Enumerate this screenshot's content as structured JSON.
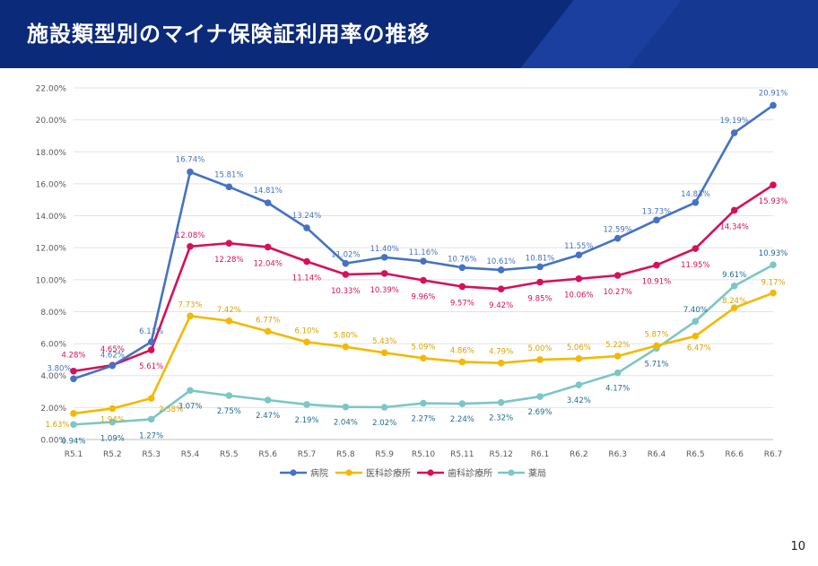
{
  "title": "施設類型別のマイナ保険証利用率の推移",
  "page_number": "10",
  "colors": {
    "header": "#0c2a7a",
    "accent": "#1f4fc4"
  },
  "chart_data": {
    "type": "line",
    "categories": [
      "R5.1",
      "R5.2",
      "R5.3",
      "R5.4",
      "R5.5",
      "R5.6",
      "R5.7",
      "R5.8",
      "R5.9",
      "R5.10",
      "R5.11",
      "R5.12",
      "R6.1",
      "R6.2",
      "R6.3",
      "R6.4",
      "R6.5",
      "R6.6",
      "R6.7"
    ],
    "ylim": [
      0,
      22
    ],
    "yticks": [
      "0.00%",
      "2.00%",
      "4.00%",
      "6.00%",
      "8.00%",
      "10.00%",
      "12.00%",
      "14.00%",
      "16.00%",
      "18.00%",
      "20.00%",
      "22.00%"
    ],
    "grid": true,
    "legend_position": "bottom",
    "series": [
      {
        "name": "病院",
        "color": "#4472c4",
        "values": [
          3.8,
          4.62,
          6.11,
          16.74,
          15.81,
          14.81,
          13.24,
          11.02,
          11.4,
          11.16,
          10.76,
          10.61,
          10.81,
          11.55,
          12.59,
          13.73,
          14.83,
          19.19,
          20.91
        ],
        "labels": [
          "3.80%",
          "4.62%",
          "6.11%",
          "16.74%",
          "15.81%",
          "14.81%",
          "13.24%",
          "11.02%",
          "11.40%",
          "11.16%",
          "10.76%",
          "10.61%",
          "10.81%",
          "11.55%",
          "12.59%",
          "13.73%",
          "14.83%",
          "19.19%",
          "20.91%"
        ]
      },
      {
        "name": "医科診療所",
        "color": "#f5b800",
        "values": [
          1.63,
          1.94,
          2.58,
          7.73,
          7.42,
          6.77,
          6.1,
          5.8,
          5.43,
          5.09,
          4.86,
          4.79,
          5.0,
          5.06,
          5.22,
          5.87,
          6.47,
          8.24,
          9.17
        ],
        "labels": [
          "1.63%",
          "1.94%",
          "2.58%",
          "7.73%",
          "7.42%",
          "6.77%",
          "6.10%",
          "5.80%",
          "5.43%",
          "5.09%",
          "4.86%",
          "4.79%",
          "5.00%",
          "5.06%",
          "5.22%",
          "5.87%",
          "6.47%",
          "8.24%",
          "9.17%"
        ]
      },
      {
        "name": "歯科診療所",
        "color": "#d6105a",
        "values": [
          4.28,
          4.65,
          5.61,
          12.08,
          12.28,
          12.04,
          11.14,
          10.33,
          10.39,
          9.96,
          9.57,
          9.42,
          9.85,
          10.06,
          10.27,
          10.91,
          11.95,
          14.34,
          15.93
        ],
        "labels": [
          "4.28%",
          "4.65%",
          "5.61%",
          "12.08%",
          "12.28%",
          "12.04%",
          "11.14%",
          "10.33%",
          "10.39%",
          "9.96%",
          "9.57%",
          "9.42%",
          "9.85%",
          "10.06%",
          "10.27%",
          "10.91%",
          "11.95%",
          "14.34%",
          "15.93%"
        ]
      },
      {
        "name": "薬局",
        "color": "#7cc6c6",
        "values": [
          0.94,
          1.09,
          1.27,
          3.07,
          2.75,
          2.47,
          2.19,
          2.04,
          2.02,
          2.27,
          2.24,
          2.32,
          2.69,
          3.42,
          4.17,
          5.71,
          7.4,
          9.61,
          10.93
        ],
        "labels": [
          "0.94%",
          "1.09%",
          "1.27%",
          "3.07%",
          "2.75%",
          "2.47%",
          "2.19%",
          "2.04%",
          "2.02%",
          "2.27%",
          "2.24%",
          "2.32%",
          "2.69%",
          "3.42%",
          "4.17%",
          "5.71%",
          "7.40%",
          "9.61%",
          "10.93%"
        ]
      }
    ]
  }
}
